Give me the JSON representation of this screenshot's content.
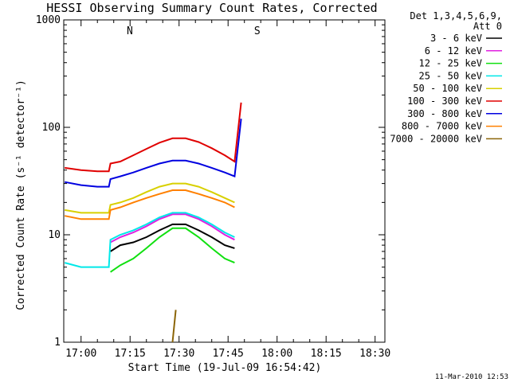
{
  "chart_data": {
    "type": "line",
    "title": "HESSI Observing Summary Count Rates, Corrected",
    "ylabel": "Corrected Count Rate (s⁻¹ detector⁻¹)",
    "xlabel": "Start Time (19-Jul-09 16:54:42)",
    "y_scale": "log",
    "ylim": [
      1,
      1000
    ],
    "xlim": [
      "16:54:42",
      "18:33:00"
    ],
    "y_ticks": [
      "1",
      "10",
      "100",
      "1000"
    ],
    "x_ticks": [
      "17:00",
      "17:15",
      "17:30",
      "17:45",
      "18:00",
      "18:15",
      "18:30"
    ],
    "legend": {
      "header_line1": "Det 1,3,4,5,6,9,",
      "header_line2": "Att 0",
      "placement": "outside-right",
      "entries": [
        {
          "label": "3 - 6 keV",
          "color": "#000000"
        },
        {
          "label": "6 - 12 keV",
          "color": "#e020e0"
        },
        {
          "label": "12 - 25 keV",
          "color": "#10e010"
        },
        {
          "label": "25 - 50 keV",
          "color": "#00e8e8"
        },
        {
          "label": "50 - 100 keV",
          "color": "#d8d000"
        },
        {
          "label": "100 - 300 keV",
          "color": "#e00000"
        },
        {
          "label": "300 - 800 keV",
          "color": "#0000e0"
        },
        {
          "label": "800 - 7000 keV",
          "color": "#ff8000"
        },
        {
          "label": "7000 - 20000 keV",
          "color": "#8b6508"
        }
      ]
    },
    "annotations": [
      {
        "text": "N",
        "x": "17:13:00",
        "color": "#00e8e8"
      },
      {
        "text": "S",
        "x": "17:52:00",
        "color": "#ff8000"
      }
    ],
    "series": [
      {
        "name": "3 - 6 keV",
        "color": "#000000",
        "x": [
          "17:09:00",
          "17:12:00",
          "17:16:00",
          "17:20:00",
          "17:24:00",
          "17:28:00",
          "17:32:00",
          "17:36:00",
          "17:40:00",
          "17:44:00",
          "17:47:00"
        ],
        "values": [
          7,
          8,
          8.5,
          9.5,
          11,
          12.5,
          12.5,
          11,
          9.5,
          8,
          7.5
        ]
      },
      {
        "name": "6 - 12 keV",
        "color": "#e020e0",
        "x": [
          "17:09:00",
          "17:12:00",
          "17:16:00",
          "17:20:00",
          "17:24:00",
          "17:28:00",
          "17:32:00",
          "17:36:00",
          "17:40:00",
          "17:44:00",
          "17:47:00"
        ],
        "values": [
          8.5,
          9.5,
          10.5,
          12,
          14,
          15.5,
          15.5,
          14,
          12,
          10,
          9
        ]
      },
      {
        "name": "12 - 25 keV",
        "color": "#10e010",
        "x": [
          "17:09:00",
          "17:12:00",
          "17:16:00",
          "17:20:00",
          "17:24:00",
          "17:28:00",
          "17:32:00",
          "17:36:00",
          "17:40:00",
          "17:44:00",
          "17:47:00"
        ],
        "values": [
          4.5,
          5.2,
          6,
          7.5,
          9.5,
          11.5,
          11.5,
          9.5,
          7.5,
          6,
          5.5
        ]
      },
      {
        "name": "25 - 50 keV",
        "color": "#00e8e8",
        "x": [
          "16:55:00",
          "17:00:00",
          "17:05:00",
          "17:08:30",
          "17:09:00",
          "17:12:00",
          "17:16:00",
          "17:20:00",
          "17:24:00",
          "17:28:00",
          "17:32:00",
          "17:36:00",
          "17:40:00",
          "17:44:00",
          "17:47:00"
        ],
        "values": [
          5.5,
          5,
          5,
          5,
          9,
          10,
          11,
          12.5,
          14.5,
          16,
          16,
          14.5,
          12.5,
          10.5,
          9.5
        ]
      },
      {
        "name": "50 - 100 keV",
        "color": "#d8d000",
        "x": [
          "16:55:00",
          "17:00:00",
          "17:05:00",
          "17:08:30",
          "17:09:00",
          "17:12:00",
          "17:16:00",
          "17:20:00",
          "17:24:00",
          "17:28:00",
          "17:32:00",
          "17:36:00",
          "17:40:00",
          "17:44:00",
          "17:47:00"
        ],
        "values": [
          17,
          16,
          16,
          16,
          19,
          20,
          22,
          25,
          28,
          30,
          30,
          28,
          25,
          22,
          20
        ]
      },
      {
        "name": "100 - 300 keV",
        "color": "#e00000",
        "x": [
          "16:55:00",
          "17:00:00",
          "17:05:00",
          "17:08:30",
          "17:09:00",
          "17:12:00",
          "17:16:00",
          "17:20:00",
          "17:24:00",
          "17:28:00",
          "17:32:00",
          "17:36:00",
          "17:40:00",
          "17:44:00",
          "17:47:00",
          "17:49:00"
        ],
        "values": [
          42,
          40,
          39,
          39,
          46,
          48,
          55,
          63,
          72,
          79,
          79,
          73,
          64,
          55,
          48,
          170
        ]
      },
      {
        "name": "300 - 800 keV",
        "color": "#0000e0",
        "x": [
          "16:55:00",
          "17:00:00",
          "17:05:00",
          "17:08:30",
          "17:09:00",
          "17:12:00",
          "17:16:00",
          "17:20:00",
          "17:24:00",
          "17:28:00",
          "17:32:00",
          "17:36:00",
          "17:40:00",
          "17:44:00",
          "17:47:00",
          "17:49:00"
        ],
        "values": [
          31,
          29,
          28,
          28,
          33,
          35,
          38,
          42,
          46,
          49,
          49,
          46,
          42,
          38,
          35,
          120
        ]
      },
      {
        "name": "800 - 7000 keV",
        "color": "#ff8000",
        "x": [
          "16:55:00",
          "17:00:00",
          "17:05:00",
          "17:08:30",
          "17:09:00",
          "17:12:00",
          "17:16:00",
          "17:20:00",
          "17:24:00",
          "17:28:00",
          "17:32:00",
          "17:36:00",
          "17:40:00",
          "17:44:00",
          "17:47:00"
        ],
        "values": [
          15,
          14,
          14,
          14,
          17,
          18,
          20,
          22,
          24,
          26,
          26,
          24,
          22,
          20,
          18
        ]
      },
      {
        "name": "7000 - 20000 keV",
        "color": "#8b6508",
        "x": [
          "17:28:00",
          "17:29:00"
        ],
        "values": [
          1,
          2
        ]
      }
    ]
  },
  "footer": {
    "timestamp": "11-Mar-2010 12:53"
  }
}
